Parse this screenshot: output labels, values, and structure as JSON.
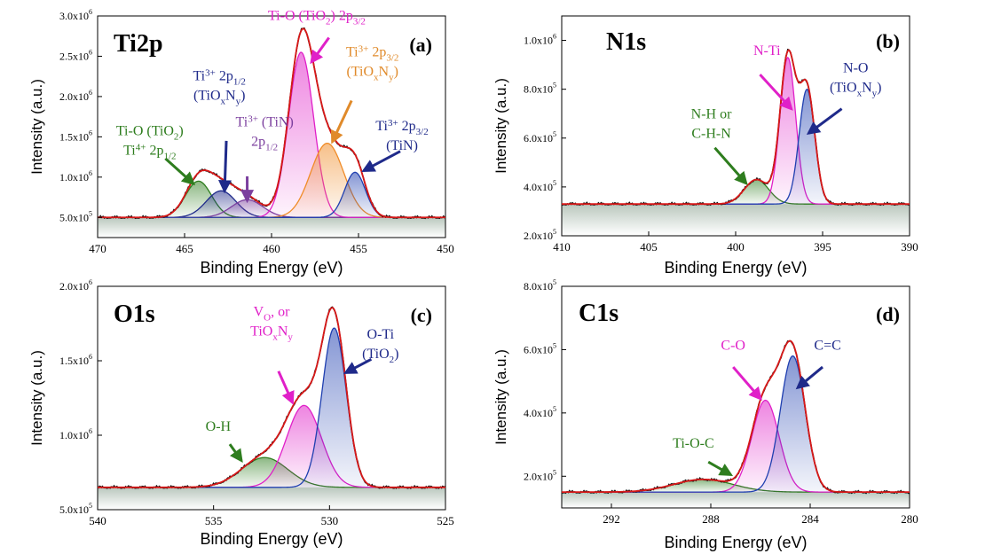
{
  "figure": {
    "axis_x_label": "Binding Energy (eV)",
    "axis_y_label": "Intensity (a.u.)"
  },
  "chart_data": [
    {
      "id": "a",
      "type": "line",
      "title": "Ti2p",
      "panel_tag": "(a)",
      "xlabel": "Binding Energy (eV)",
      "ylabel": "Intensity (a.u.)",
      "x_reversed": true,
      "xlim": [
        470,
        450
      ],
      "ylim": [
        250000,
        3000000
      ],
      "xticks": [
        {
          "v": 470,
          "label": "470"
        },
        {
          "v": 465,
          "label": "465"
        },
        {
          "v": 460,
          "label": "460"
        },
        {
          "v": 455,
          "label": "455"
        },
        {
          "v": 450,
          "label": "450"
        }
      ],
      "yticks": [
        {
          "v": 500000,
          "m": "5.0x10",
          "e": "5"
        },
        {
          "v": 1000000,
          "m": "1.0x10",
          "e": "6"
        },
        {
          "v": 1500000,
          "m": "1.5x10",
          "e": "6"
        },
        {
          "v": 2000000,
          "m": "2.0x10",
          "e": "6"
        },
        {
          "v": 2500000,
          "m": "2.5x10",
          "e": "6"
        },
        {
          "v": 3000000,
          "m": "3.0x10",
          "e": "6"
        }
      ],
      "baseline": 500000,
      "peaks": [
        {
          "name": "Ti-O (TiO2) Ti4+ 2p1/2",
          "center": 464.2,
          "height": 450000,
          "sigma": 0.75,
          "color": "#2e7d1e"
        },
        {
          "name": "Ti3+ 2p1/2 (TiOxNy)",
          "center": 462.9,
          "height": 330000,
          "sigma": 0.85,
          "color": "#1f2a8a"
        },
        {
          "name": "Ti3+ (TiN) 2p1/2",
          "center": 461.4,
          "height": 220000,
          "sigma": 0.9,
          "color": "#7b3f9e"
        },
        {
          "name": "Ti-O (TiO2) 2p3/2",
          "center": 458.3,
          "height": 2050000,
          "sigma": 0.72,
          "color": "#e020c8"
        },
        {
          "name": "Ti3+ 2p3/2 (TiOxNy)",
          "center": 456.8,
          "height": 920000,
          "sigma": 0.95,
          "color": "#f08c28"
        },
        {
          "name": "Ti3+ 2p3/2 (TiN)",
          "center": 455.2,
          "height": 560000,
          "sigma": 0.6,
          "color": "#1f3fb0"
        }
      ],
      "annotations": [
        {
          "lines": [
            [
              [
                "Ti-O (TiO",
                "n"
              ],
              [
                "2",
                "sub"
              ],
              [
                ")",
                "n"
              ]
            ],
            [
              [
                "Ti",
                "n"
              ],
              [
                "4+",
                "sup"
              ],
              [
                " 2p",
                "n"
              ],
              [
                "1/2",
                "sub"
              ]
            ]
          ],
          "x": 467.0,
          "y": 1520000,
          "color": "#2e7d1e",
          "arrow": [
            466.1,
            1230000,
            464.5,
            920000
          ]
        },
        {
          "lines": [
            [
              [
                "Ti",
                "n"
              ],
              [
                "3+",
                "sup"
              ],
              [
                " 2p",
                "n"
              ],
              [
                "1/2",
                "sub"
              ]
            ],
            [
              [
                "(TiO",
                "n"
              ],
              [
                "x",
                "sub"
              ],
              [
                "N",
                "n"
              ],
              [
                "y",
                "sub"
              ],
              [
                ")",
                "n"
              ]
            ]
          ],
          "x": 463.0,
          "y": 2200000,
          "color": "#1f2a8a",
          "arrow": [
            462.6,
            1450000,
            462.7,
            830000
          ]
        },
        {
          "lines": [
            [
              [
                "Ti",
                "n"
              ],
              [
                "3+",
                "sup"
              ],
              [
                " (TiN)",
                "n"
              ]
            ],
            [
              [
                "2p",
                "n"
              ],
              [
                "1/2",
                "sub"
              ]
            ]
          ],
          "x": 460.4,
          "y": 1630000,
          "color": "#7b3f9e",
          "arrow": [
            461.4,
            1010000,
            461.4,
            710000
          ]
        },
        {
          "lines": [
            [
              [
                "Ti-O (TiO",
                "n"
              ],
              [
                "2",
                "sub"
              ],
              [
                ")  2p",
                "n"
              ],
              [
                "3/2",
                "sub"
              ]
            ]
          ],
          "x": 457.4,
          "y": 2950000,
          "color": "#e020c8",
          "arrow": [
            456.7,
            2730000,
            457.7,
            2430000
          ]
        },
        {
          "lines": [
            [
              [
                "Ti",
                "n"
              ],
              [
                "3+",
                "sup"
              ],
              [
                " 2p",
                "n"
              ],
              [
                "3/2",
                "sub"
              ]
            ],
            [
              [
                "(TiO",
                "n"
              ],
              [
                "x",
                "sub"
              ],
              [
                "N",
                "n"
              ],
              [
                "y",
                "sub"
              ],
              [
                ")",
                "n"
              ]
            ]
          ],
          "x": 454.2,
          "y": 2500000,
          "color": "#e08a2a",
          "arrow": [
            455.4,
            1950000,
            456.5,
            1440000
          ]
        },
        {
          "lines": [
            [
              [
                "Ti",
                "n"
              ],
              [
                "3+",
                "sup"
              ],
              [
                " 2p",
                "n"
              ],
              [
                "3/2",
                "sub"
              ]
            ],
            [
              [
                "(TiN)",
                "n"
              ]
            ]
          ],
          "x": 452.5,
          "y": 1580000,
          "color": "#1f2a8a",
          "arrow": [
            452.6,
            1320000,
            454.7,
            1080000
          ]
        }
      ]
    },
    {
      "id": "b",
      "type": "line",
      "title": "N1s",
      "panel_tag": "(b)",
      "xlabel": "Binding Energy (eV)",
      "ylabel": "Intensity (a.u.)",
      "x_reversed": true,
      "xlim": [
        410,
        390
      ],
      "ylim": [
        200000,
        1100000
      ],
      "xticks": [
        {
          "v": 410,
          "label": "410"
        },
        {
          "v": 405,
          "label": "405"
        },
        {
          "v": 400,
          "label": "400"
        },
        {
          "v": 395,
          "label": "395"
        },
        {
          "v": 390,
          "label": "390"
        }
      ],
      "yticks": [
        {
          "v": 200000,
          "m": "2.0x10",
          "e": "5"
        },
        {
          "v": 400000,
          "m": "4.0x10",
          "e": "5"
        },
        {
          "v": 600000,
          "m": "6.0x10",
          "e": "5"
        },
        {
          "v": 800000,
          "m": "8.0x10",
          "e": "5"
        },
        {
          "v": 1000000,
          "m": "1.0x10",
          "e": "6"
        }
      ],
      "baseline": 330000,
      "peaks": [
        {
          "name": "N-H or C-H-N",
          "center": 398.8,
          "height": 100000,
          "sigma": 0.7,
          "color": "#2e7d1e"
        },
        {
          "name": "N-Ti",
          "center": 397.0,
          "height": 600000,
          "sigma": 0.45,
          "color": "#e020c8"
        },
        {
          "name": "N-O (TiOxNy)",
          "center": 395.9,
          "height": 470000,
          "sigma": 0.45,
          "color": "#1f3fb0"
        }
      ],
      "annotations": [
        {
          "lines": [
            [
              [
                "N-H or",
                "n"
              ]
            ],
            [
              [
                "C-H-N",
                "n"
              ]
            ]
          ],
          "x": 401.4,
          "y": 680000,
          "color": "#2e7d1e",
          "arrow": [
            401.2,
            560000,
            399.4,
            415000
          ]
        },
        {
          "lines": [
            [
              [
                "N-Ti",
                "n"
              ]
            ]
          ],
          "x": 398.2,
          "y": 940000,
          "color": "#e020c8",
          "arrow": [
            398.6,
            860000,
            396.8,
            720000
          ]
        },
        {
          "lines": [
            [
              [
                "N-O",
                "n"
              ]
            ],
            [
              [
                "(TiO",
                "n"
              ],
              [
                "x",
                "sub"
              ],
              [
                "N",
                "n"
              ],
              [
                "y",
                "sub"
              ],
              [
                ")",
                "n"
              ]
            ]
          ],
          "x": 393.1,
          "y": 870000,
          "color": "#1f2a8a",
          "arrow": [
            393.9,
            720000,
            395.8,
            620000
          ]
        }
      ]
    },
    {
      "id": "c",
      "type": "line",
      "title": "O1s",
      "panel_tag": "(c)",
      "xlabel": "Binding Energy (eV)",
      "ylabel": "Intensity (a.u.)",
      "x_reversed": true,
      "xlim": [
        540,
        525
      ],
      "ylim": [
        500000,
        2000000
      ],
      "xticks": [
        {
          "v": 540,
          "label": "540"
        },
        {
          "v": 535,
          "label": "535"
        },
        {
          "v": 530,
          "label": "530"
        },
        {
          "v": 525,
          "label": "525"
        }
      ],
      "yticks": [
        {
          "v": 500000,
          "m": "5.0x10",
          "e": "5"
        },
        {
          "v": 1000000,
          "m": "1.0x10",
          "e": "6"
        },
        {
          "v": 1500000,
          "m": "1.5x10",
          "e": "6"
        },
        {
          "v": 2000000,
          "m": "2.0x10",
          "e": "6"
        }
      ],
      "baseline": 650000,
      "peaks": [
        {
          "name": "O-H",
          "center": 532.8,
          "height": 200000,
          "sigma": 1.0,
          "color": "#2e7d1e"
        },
        {
          "name": "VO, or TiOxNy",
          "center": 531.1,
          "height": 550000,
          "sigma": 0.75,
          "color": "#e020c8"
        },
        {
          "name": "O-Ti (TiO2)",
          "center": 529.8,
          "height": 1070000,
          "sigma": 0.52,
          "color": "#1f3fb0"
        }
      ],
      "annotations": [
        {
          "lines": [
            [
              [
                "O-H",
                "n"
              ]
            ]
          ],
          "x": 534.8,
          "y": 1030000,
          "color": "#2e7d1e",
          "arrow": [
            534.3,
            940000,
            533.8,
            830000
          ]
        },
        {
          "lines": [
            [
              [
                "V",
                "n"
              ],
              [
                "O",
                "sub"
              ],
              [
                ", or",
                "n"
              ]
            ],
            [
              [
                "TiO",
                "n"
              ],
              [
                "x",
                "sub"
              ],
              [
                "N",
                "n"
              ],
              [
                "y",
                "sub"
              ]
            ]
          ],
          "x": 532.5,
          "y": 1800000,
          "color": "#e020c8",
          "arrow": [
            532.2,
            1430000,
            531.6,
            1220000
          ]
        },
        {
          "lines": [
            [
              [
                "O-Ti",
                "n"
              ]
            ],
            [
              [
                "(TiO",
                "n"
              ],
              [
                "2",
                "sub"
              ],
              [
                ")",
                "n"
              ]
            ]
          ],
          "x": 527.8,
          "y": 1650000,
          "color": "#1f2a8a",
          "arrow": [
            528.2,
            1510000,
            529.3,
            1420000
          ]
        }
      ]
    },
    {
      "id": "d",
      "type": "line",
      "title": "C1s",
      "panel_tag": "(d)",
      "xlabel": "Binding Energy (eV)",
      "ylabel": "Intensity (a.u.)",
      "x_reversed": true,
      "xlim": [
        294,
        280
      ],
      "ylim": [
        100000,
        800000
      ],
      "xticks": [
        {
          "v": 292,
          "label": "292"
        },
        {
          "v": 288,
          "label": "288"
        },
        {
          "v": 284,
          "label": "284"
        },
        {
          "v": 280,
          "label": "280"
        }
      ],
      "yticks": [
        {
          "v": 200000,
          "m": "2.0x10",
          "e": "5"
        },
        {
          "v": 400000,
          "m": "4.0x10",
          "e": "5"
        },
        {
          "v": 600000,
          "m": "6.0x10",
          "e": "5"
        },
        {
          "v": 800000,
          "m": "8.0x10",
          "e": "5"
        }
      ],
      "baseline": 150000,
      "peaks": [
        {
          "name": "Ti-O-C",
          "center": 288.3,
          "height": 40000,
          "sigma": 1.2,
          "color": "#2e7d1e"
        },
        {
          "name": "C-O",
          "center": 285.8,
          "height": 290000,
          "sigma": 0.55,
          "color": "#e020c8"
        },
        {
          "name": "C=C",
          "center": 284.7,
          "height": 430000,
          "sigma": 0.5,
          "color": "#1f3fb0"
        }
      ],
      "annotations": [
        {
          "lines": [
            [
              [
                "Ti-O-C",
                "n"
              ]
            ]
          ],
          "x": 288.7,
          "y": 290000,
          "color": "#2e7d1e",
          "arrow": [
            288.1,
            245000,
            287.2,
            205000
          ]
        },
        {
          "lines": [
            [
              [
                "C-O",
                "n"
              ]
            ]
          ],
          "x": 287.1,
          "y": 600000,
          "color": "#e020c8",
          "arrow": [
            287.1,
            545000,
            286.0,
            445000
          ]
        },
        {
          "lines": [
            [
              [
                "C=C",
                "n"
              ]
            ]
          ],
          "x": 283.3,
          "y": 600000,
          "color": "#1f2a8a",
          "arrow": [
            283.5,
            545000,
            284.5,
            480000
          ]
        }
      ]
    }
  ]
}
